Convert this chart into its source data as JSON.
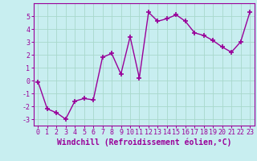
{
  "x": [
    0,
    1,
    2,
    3,
    4,
    5,
    6,
    7,
    8,
    9,
    10,
    11,
    12,
    13,
    14,
    15,
    16,
    17,
    18,
    19,
    20,
    21,
    22,
    23
  ],
  "y": [
    -0.1,
    -2.2,
    -2.5,
    -3.0,
    -1.6,
    -1.4,
    -1.5,
    1.8,
    2.1,
    0.5,
    3.4,
    0.2,
    5.3,
    4.6,
    4.8,
    5.1,
    4.6,
    3.7,
    3.5,
    3.1,
    2.6,
    2.2,
    3.0,
    5.3
  ],
  "line_color": "#990099",
  "marker": "+",
  "bg_color": "#c8eef0",
  "grid_color": "#a8d8cc",
  "xlabel": "Windchill (Refroidissement éolien,°C)",
  "ylabel": "",
  "xlim": [
    -0.5,
    23.5
  ],
  "ylim": [
    -3.5,
    6.0
  ],
  "yticks": [
    -3,
    -2,
    -1,
    0,
    1,
    2,
    3,
    4,
    5
  ],
  "xticks": [
    0,
    1,
    2,
    3,
    4,
    5,
    6,
    7,
    8,
    9,
    10,
    11,
    12,
    13,
    14,
    15,
    16,
    17,
    18,
    19,
    20,
    21,
    22,
    23
  ],
  "xtick_labels": [
    "0",
    "1",
    "2",
    "3",
    "4",
    "5",
    "6",
    "7",
    "8",
    "9",
    "10",
    "11",
    "12",
    "13",
    "14",
    "15",
    "16",
    "17",
    "18",
    "19",
    "20",
    "21",
    "22",
    "23"
  ],
  "tick_color": "#990099",
  "label_color": "#990099",
  "spine_color": "#990099",
  "xlabel_fontsize": 7,
  "tick_fontsize": 6,
  "marker_size": 4,
  "linewidth": 1.0
}
